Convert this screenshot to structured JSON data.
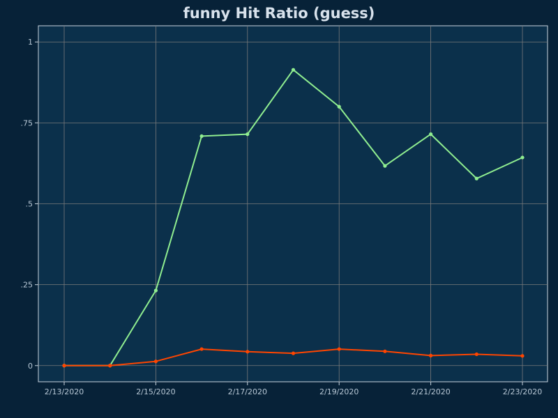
{
  "chart_data": {
    "type": "line",
    "title": "funny Hit Ratio (guess)",
    "xlabel": "",
    "ylabel": "",
    "x": [
      "2/13/2020",
      "2/14/2020",
      "2/15/2020",
      "2/16/2020",
      "2/17/2020",
      "2/18/2020",
      "2/19/2020",
      "2/20/2020",
      "2/21/2020",
      "2/22/2020",
      "2/23/2020"
    ],
    "x_tick_labels": [
      "2/13/2020",
      "2/15/2020",
      "2/17/2020",
      "2/19/2020",
      "2/21/2020",
      "2/23/2020"
    ],
    "y_tick_labels": [
      "0",
      ".25",
      ".5",
      ".75",
      "1"
    ],
    "y_ticks": [
      0,
      0.25,
      0.5,
      0.75,
      1
    ],
    "ylim": [
      -0.05,
      1.05
    ],
    "grid": true,
    "legend": "none",
    "series": [
      {
        "color": "#90ee90",
        "values": [
          0,
          0,
          0.232,
          0.709,
          0.715,
          0.914,
          0.8,
          0.617,
          0.715,
          0.578,
          0.643
        ]
      },
      {
        "color": "#ff4500",
        "values": [
          0,
          0,
          0.013,
          0.051,
          0.043,
          0.038,
          0.051,
          0.044,
          0.031,
          0.035,
          0.03
        ]
      }
    ]
  },
  "colors": {
    "background": "#072238",
    "plot_background": "#0b304b",
    "grid": "#7a7a7a",
    "axis": "#c8d4de",
    "text": "#b8c8d6"
  }
}
